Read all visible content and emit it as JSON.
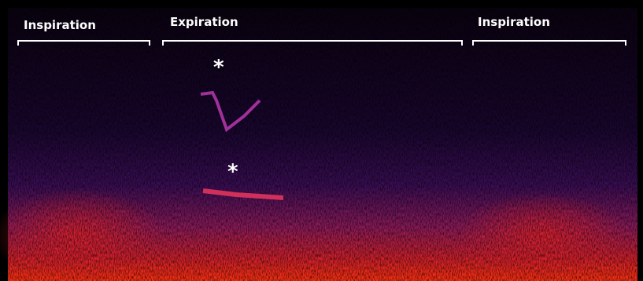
{
  "phases": [
    {
      "label": "Inspiration"
    },
    {
      "label": "Expiration"
    },
    {
      "label": "Inspiration"
    }
  ],
  "markers": [
    "*",
    "*"
  ]
}
